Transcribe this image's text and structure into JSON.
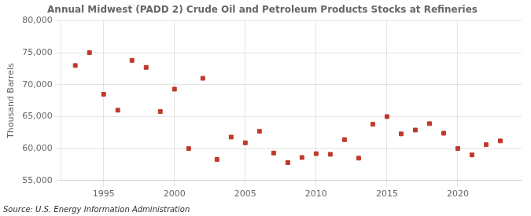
{
  "chart_data": {
    "type": "scatter",
    "title": "Annual Midwest (PADD 2) Crude Oil and Petroleum Products Stocks at Refineries",
    "ylabel": "Thousand Barrels",
    "source": "Source: U.S. Energy Information Administration",
    "x": [
      1993,
      1994,
      1995,
      1996,
      1997,
      1998,
      1999,
      2000,
      2001,
      2002,
      2003,
      2004,
      2005,
      2006,
      2007,
      2008,
      2009,
      2010,
      2011,
      2012,
      2013,
      2014,
      2015,
      2016,
      2017,
      2018,
      2019,
      2020,
      2021,
      2022,
      2023
    ],
    "values": [
      73000,
      75000,
      68500,
      66000,
      73800,
      72700,
      65800,
      69300,
      60000,
      71000,
      58300,
      61800,
      60900,
      62700,
      59300,
      57800,
      58600,
      59200,
      59100,
      61400,
      58500,
      63800,
      65000,
      62300,
      62900,
      63900,
      62400,
      60000,
      59000,
      60600,
      61200
    ],
    "color": "#c0392b",
    "marker": "square",
    "xlim": [
      1992,
      2024.5
    ],
    "xticks": [
      1995,
      2000,
      2005,
      2010,
      2015,
      2020
    ],
    "ylim": [
      55000,
      80000
    ],
    "yticks": [
      {
        "value": 55000,
        "label": "55,000"
      },
      {
        "value": 60000,
        "label": "60,000"
      },
      {
        "value": 65000,
        "label": "65,000"
      },
      {
        "value": 70000,
        "label": "70,000"
      },
      {
        "value": 75000,
        "label": "75,000"
      },
      {
        "value": 80000,
        "label": "80,000"
      }
    ],
    "grid": true
  }
}
